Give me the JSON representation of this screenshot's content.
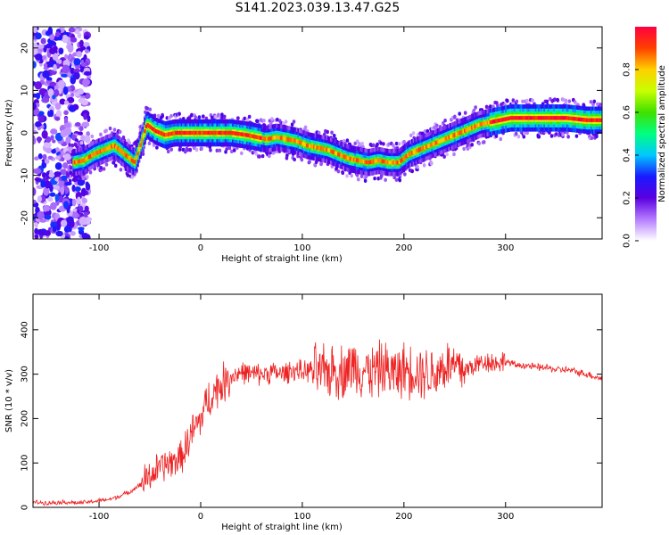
{
  "figure": {
    "title": "S141.2023.039.13.47.G25"
  },
  "chart_data": [
    {
      "type": "heatmap",
      "xlabel": "Height of straight line (km)",
      "ylabel": "Frequency (Hz)",
      "xlim": [
        -165,
        395
      ],
      "ylim": [
        -25,
        25
      ],
      "xticks": [
        -100,
        0,
        100,
        200,
        300
      ],
      "yticks": [
        -20,
        -10,
        0,
        10,
        20
      ],
      "grid": false,
      "colorbar": {
        "label": "Normalized spectral amplitude",
        "range": [
          0,
          1
        ],
        "ticks": [
          0.0,
          0.2,
          0.4,
          0.6,
          0.8
        ],
        "colormap": [
          "#ffffff",
          "#b57cff",
          "#5a00e0",
          "#1a1aff",
          "#00c8ff",
          "#00ff80",
          "#40e000",
          "#c8ff00",
          "#ffd000",
          "#ff4000",
          "#ff0040"
        ]
      },
      "ridge": {
        "x": [
          -125,
          -115,
          -105,
          -95,
          -85,
          -75,
          -65,
          -58,
          -53,
          -45,
          -35,
          -25,
          -10,
          0,
          15,
          30,
          45,
          55,
          65,
          75,
          85,
          95,
          105,
          115,
          125,
          135,
          145,
          155,
          165,
          175,
          185,
          195,
          205,
          215,
          225,
          235,
          245,
          255,
          265,
          275,
          285,
          295,
          305,
          320,
          340,
          360,
          380,
          395
        ],
        "y": [
          -7,
          -6.5,
          -5,
          -4,
          -3,
          -5,
          -7,
          -2,
          2,
          0.5,
          -0.5,
          0,
          0,
          0,
          0,
          0,
          -0.5,
          -1,
          -1.5,
          -1,
          -1.5,
          -2,
          -3,
          -3.5,
          -4,
          -5,
          -6,
          -6.5,
          -7,
          -6.5,
          -7,
          -7,
          -5,
          -4,
          -3,
          -2,
          -1,
          0,
          1,
          2,
          2.5,
          3,
          3.5,
          3.5,
          3.5,
          3.5,
          3,
          3
        ]
      }
    },
    {
      "type": "line",
      "xlabel": "Height of straight line (km)",
      "ylabel": "SNR (10 * v/v)",
      "xlim": [
        -165,
        395
      ],
      "ylim": [
        0,
        480
      ],
      "xticks": [
        -100,
        0,
        100,
        200,
        300
      ],
      "yticks": [
        0,
        100,
        200,
        300,
        400
      ],
      "grid": false,
      "series": [
        {
          "color": "#ee2222",
          "x": [
            -165,
            -150,
            -135,
            -120,
            -110,
            -100,
            -90,
            -80,
            -70,
            -60,
            -50,
            -40,
            -30,
            -20,
            -15,
            -10,
            -5,
            0,
            5,
            10,
            15,
            20,
            25,
            30,
            40,
            50,
            60,
            70,
            80,
            90,
            100,
            110,
            120,
            130,
            140,
            150,
            160,
            170,
            180,
            190,
            200,
            210,
            220,
            230,
            240,
            250,
            260,
            270,
            280,
            290,
            300,
            310,
            320,
            330,
            340,
            350,
            360,
            370,
            380,
            395
          ],
          "y": [
            12,
            10,
            12,
            10,
            12,
            15,
            18,
            25,
            35,
            50,
            70,
            90,
            100,
            110,
            130,
            160,
            180,
            200,
            230,
            250,
            265,
            275,
            285,
            295,
            305,
            300,
            300,
            305,
            300,
            310,
            305,
            310,
            300,
            310,
            305,
            320,
            310,
            305,
            315,
            300,
            310,
            310,
            305,
            300,
            320,
            315,
            310,
            320,
            330,
            325,
            330,
            320,
            320,
            315,
            315,
            310,
            310,
            305,
            300,
            290
          ]
        }
      ]
    }
  ]
}
